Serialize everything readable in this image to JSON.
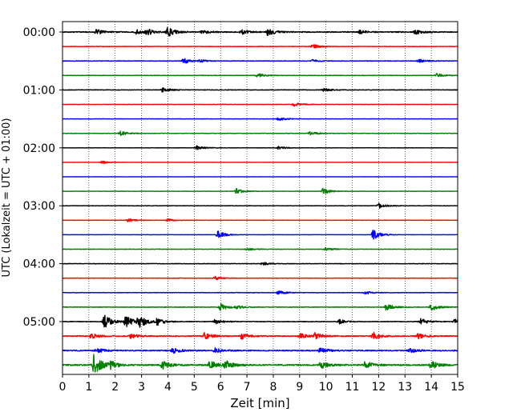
{
  "chart_data": {
    "type": "line",
    "title": "",
    "xlabel": "Zeit  [min]",
    "ylabel": "UTC (Lokalzeit = UTC + 01:00)",
    "xlim": [
      0,
      15
    ],
    "x_ticks": [
      "0",
      "1",
      "2",
      "3",
      "4",
      "5",
      "6",
      "7",
      "8",
      "9",
      "10",
      "11",
      "12",
      "13",
      "14",
      "15"
    ],
    "y_tick_labels": [
      "00:00",
      "01:00",
      "02:00",
      "03:00",
      "04:00",
      "05:00"
    ],
    "grid": "vertical dotted at each minute",
    "row_duration_min": 15,
    "color_cycle": [
      "#000000",
      "#ff0000",
      "#0000ff",
      "#008000"
    ],
    "traces": [
      {
        "start": "00:00",
        "color": "#000000",
        "level": 0.9,
        "events": [
          [
            1.3,
            0.6
          ],
          [
            2.8,
            0.5
          ],
          [
            3.2,
            0.7
          ],
          [
            4.0,
            1.0
          ],
          [
            5.3,
            0.5
          ],
          [
            6.8,
            0.6
          ],
          [
            7.8,
            0.8
          ],
          [
            11.3,
            0.4
          ],
          [
            13.4,
            0.5
          ]
        ]
      },
      {
        "start": "00:15",
        "color": "#ff0000",
        "level": 0.45,
        "events": [
          [
            9.5,
            0.5
          ]
        ]
      },
      {
        "start": "00:30",
        "color": "#0000ff",
        "level": 0.55,
        "events": [
          [
            4.6,
            0.6
          ],
          [
            5.2,
            0.3
          ],
          [
            9.5,
            0.3
          ],
          [
            13.5,
            0.4
          ]
        ]
      },
      {
        "start": "00:45",
        "color": "#008000",
        "level": 0.45,
        "events": [
          [
            7.4,
            0.5
          ],
          [
            14.2,
            0.45
          ]
        ]
      },
      {
        "start": "01:00",
        "color": "#000000",
        "level": 0.55,
        "events": [
          [
            3.8,
            0.5
          ],
          [
            9.9,
            0.35
          ]
        ]
      },
      {
        "start": "01:15",
        "color": "#ff0000",
        "level": 0.3,
        "events": [
          [
            8.8,
            0.4
          ]
        ]
      },
      {
        "start": "01:30",
        "color": "#0000ff",
        "level": 0.35,
        "events": [
          [
            8.2,
            0.45
          ]
        ]
      },
      {
        "start": "01:45",
        "color": "#008000",
        "level": 0.45,
        "events": [
          [
            2.2,
            0.45
          ],
          [
            9.4,
            0.4
          ]
        ]
      },
      {
        "start": "02:00",
        "color": "#000000",
        "level": 0.3,
        "events": [
          [
            5.1,
            0.5
          ],
          [
            8.2,
            0.35
          ]
        ]
      },
      {
        "start": "02:15",
        "color": "#ff0000",
        "level": 0.2,
        "events": [
          [
            1.5,
            0.3
          ]
        ]
      },
      {
        "start": "02:30",
        "color": "#0000ff",
        "level": 0.2,
        "events": []
      },
      {
        "start": "02:45",
        "color": "#008000",
        "level": 0.3,
        "events": [
          [
            6.6,
            0.6
          ],
          [
            9.9,
            0.7
          ]
        ]
      },
      {
        "start": "03:00",
        "color": "#000000",
        "level": 0.4,
        "events": [
          [
            12.0,
            0.6
          ]
        ]
      },
      {
        "start": "03:15",
        "color": "#ff0000",
        "level": 0.3,
        "events": [
          [
            2.5,
            0.4
          ],
          [
            4.0,
            0.35
          ]
        ]
      },
      {
        "start": "03:30",
        "color": "#0000ff",
        "level": 0.25,
        "events": [
          [
            5.9,
            0.9
          ],
          [
            11.8,
            1.2
          ]
        ]
      },
      {
        "start": "03:45",
        "color": "#008000",
        "level": 0.45,
        "events": [
          [
            7.0,
            0.35
          ],
          [
            10.0,
            0.35
          ]
        ]
      },
      {
        "start": "04:00",
        "color": "#000000",
        "level": 0.5,
        "events": [
          [
            7.6,
            0.35
          ]
        ]
      },
      {
        "start": "04:15",
        "color": "#ff0000",
        "level": 0.45,
        "events": [
          [
            5.8,
            0.35
          ]
        ]
      },
      {
        "start": "04:30",
        "color": "#0000ff",
        "level": 0.45,
        "events": [
          [
            8.2,
            0.45
          ],
          [
            11.5,
            0.35
          ]
        ]
      },
      {
        "start": "04:45",
        "color": "#008000",
        "level": 0.55,
        "events": [
          [
            6.0,
            0.8
          ],
          [
            12.3,
            0.8
          ],
          [
            14.0,
            0.8
          ],
          [
            6.6,
            0.4
          ]
        ]
      },
      {
        "start": "05:00",
        "color": "#000000",
        "level": 0.6,
        "events": [
          [
            1.6,
            1.5
          ],
          [
            2.4,
            1.3
          ],
          [
            2.9,
            1.4
          ],
          [
            3.6,
            0.8
          ],
          [
            5.8,
            0.6
          ],
          [
            10.5,
            0.5
          ],
          [
            13.6,
            0.7
          ],
          [
            14.9,
            0.6
          ]
        ]
      },
      {
        "start": "05:15",
        "color": "#ff0000",
        "level": 0.9,
        "events": [
          [
            1.1,
            0.6
          ],
          [
            2.6,
            0.5
          ],
          [
            5.4,
            0.8
          ],
          [
            6.8,
            0.7
          ],
          [
            9.0,
            0.6
          ],
          [
            9.6,
            0.7
          ],
          [
            11.8,
            0.9
          ],
          [
            13.5,
            0.6
          ]
        ]
      },
      {
        "start": "05:30",
        "color": "#0000ff",
        "level": 1.0,
        "events": [
          [
            1.3,
            0.5
          ],
          [
            4.2,
            0.6
          ],
          [
            5.8,
            0.6
          ],
          [
            9.8,
            0.7
          ],
          [
            13.2,
            0.5
          ]
        ]
      },
      {
        "start": "05:45",
        "color": "#008000",
        "level": 1.3,
        "events": [
          [
            1.2,
            2.5
          ],
          [
            1.8,
            0.8
          ],
          [
            3.8,
            0.9
          ],
          [
            5.6,
            0.9
          ],
          [
            6.2,
            0.9
          ],
          [
            9.8,
            0.8
          ],
          [
            11.5,
            0.8
          ],
          [
            14.0,
            0.9
          ]
        ]
      }
    ]
  }
}
